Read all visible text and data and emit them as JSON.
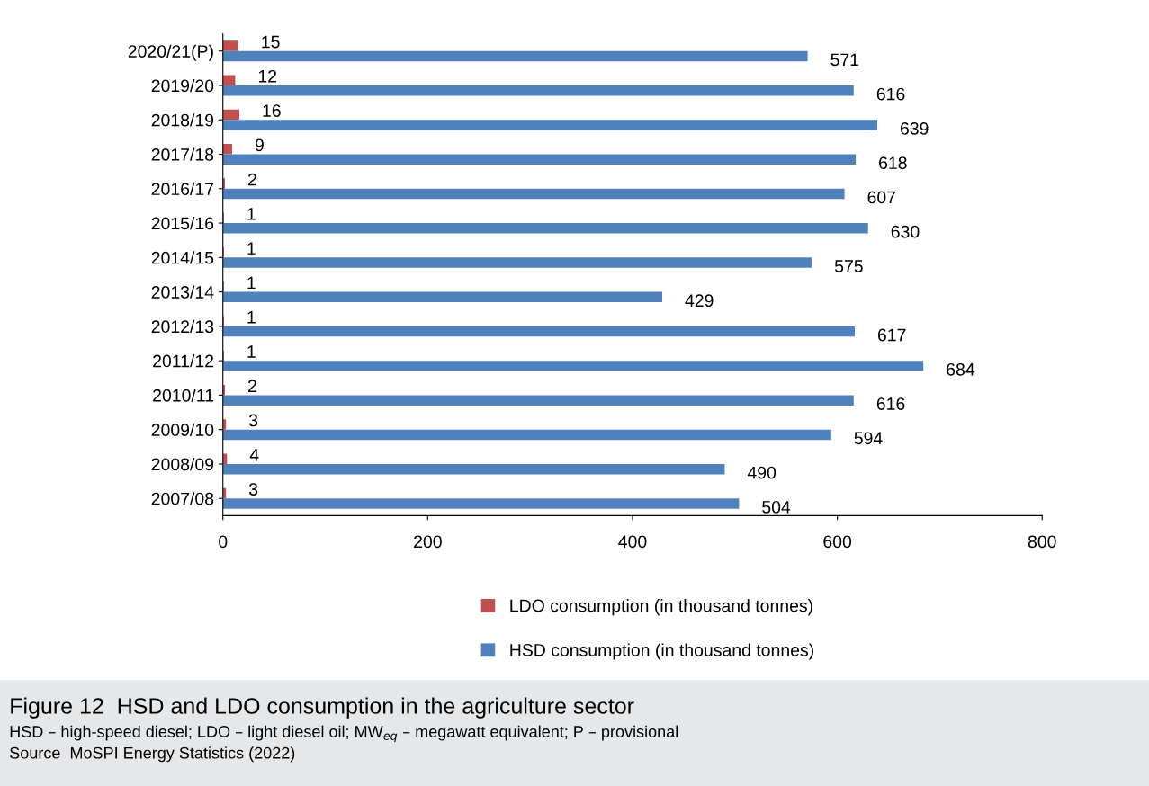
{
  "chart_data": {
    "type": "bar",
    "orientation": "horizontal",
    "title": "Figure 12  HSD and LDO consumption in the agriculture sector",
    "subtitle": "HSD – high-speed diesel; LDO – light diesel oil; MW$_{eq}$ – megawatt equivalent; P – provisional",
    "annotations": [
      "Source  MoSPI Energy Statistics (2022)"
    ],
    "categories": [
      "2020/21(P)",
      "2019/20",
      "2018/19",
      "2017/18",
      "2016/17",
      "2015/16",
      "2014/15",
      "2013/14",
      "2012/13",
      "2011/12",
      "2010/11",
      "2009/10",
      "2008/09",
      "2007/08"
    ],
    "series": [
      {
        "name": "LDO consumption (in thousand tonnes)",
        "color": "#c0504d",
        "values": [
          15,
          12,
          16,
          9,
          2,
          1,
          1,
          1,
          1,
          1,
          2,
          3,
          4,
          3
        ]
      },
      {
        "name": "HSD consumption (in thousand tonnes)",
        "color": "#4f81bd",
        "values": [
          571,
          616,
          639,
          618,
          607,
          630,
          575,
          429,
          617,
          684,
          616,
          594,
          490,
          504
        ]
      }
    ],
    "xlim": [
      0,
      800
    ],
    "xticks": [
      0,
      200,
      400,
      600,
      800
    ],
    "data_labels": true,
    "grid": false,
    "legend": "bottom"
  }
}
